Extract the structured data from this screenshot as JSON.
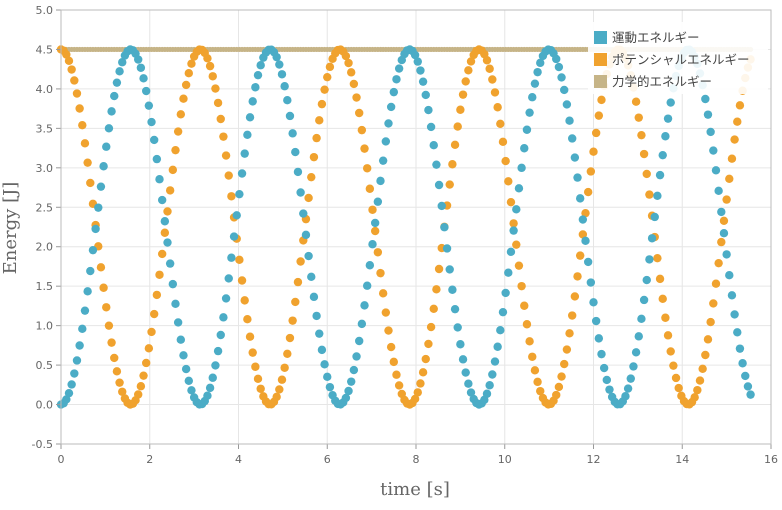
{
  "chart_data": {
    "type": "scatter",
    "xlabel": "time [s]",
    "ylabel": "Energy [J]",
    "xlim": [
      0,
      16
    ],
    "ylim": [
      -0.5,
      5.0
    ],
    "x_ticks": [
      "0",
      "2",
      "4",
      "6",
      "8",
      "10",
      "12",
      "14",
      "16"
    ],
    "y_ticks": [
      "-0.5",
      "0.0",
      "0.5",
      "1.0",
      "1.5",
      "2.0",
      "2.5",
      "3.0",
      "3.5",
      "4.0",
      "4.5",
      "5.0"
    ],
    "grid": true,
    "legend_position": "top-right",
    "total_energy": 4.5,
    "angular_frequency": 1.0,
    "t_end": 15.55,
    "sample_step": 0.06,
    "series": [
      {
        "name": "運動エネルギー",
        "kind": "kinetic",
        "color": "#4bacc6",
        "formula": "4.5*sin(t)^2"
      },
      {
        "name": "ポテンシャルエネルギー",
        "kind": "potential",
        "color": "#f0a22e",
        "formula": "4.5*cos(t)^2"
      },
      {
        "name": "力学的エネルギー",
        "kind": "total",
        "color": "#c6b487",
        "formula": "4.5"
      }
    ]
  }
}
